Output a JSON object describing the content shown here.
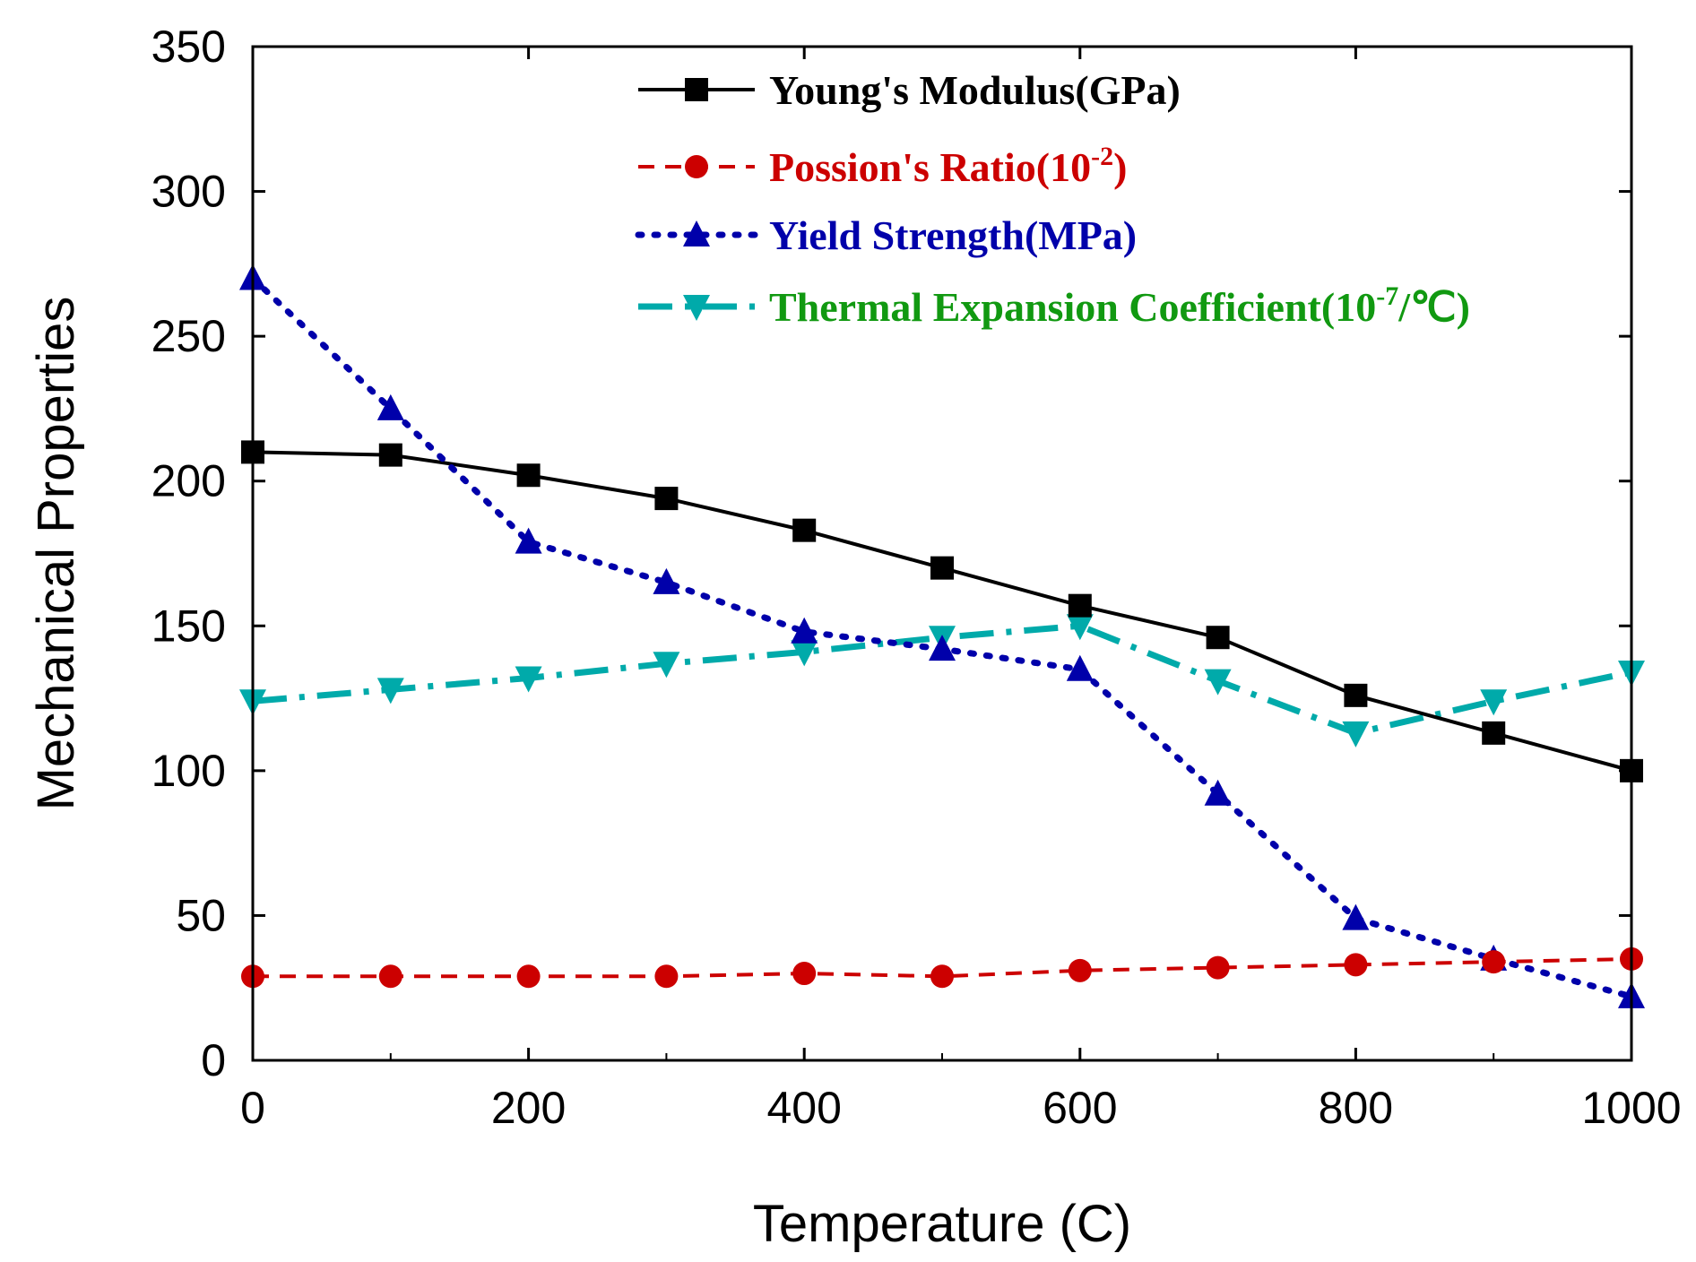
{
  "chart_data": {
    "type": "line",
    "xlabel": "Temperature (C)",
    "ylabel": "Mechanical  Properties",
    "xlim": [
      0,
      1000
    ],
    "ylim": [
      0,
      350
    ],
    "xticks": [
      0,
      200,
      400,
      600,
      800,
      1000
    ],
    "yticks": [
      0,
      50,
      100,
      150,
      200,
      250,
      300,
      350
    ],
    "x": [
      0,
      100,
      200,
      300,
      400,
      500,
      600,
      700,
      800,
      900,
      1000
    ],
    "legend_position": "top-right",
    "series": [
      {
        "name": "Young's Modulus(GPa)",
        "label_main": "Young's Modulus(GPa)",
        "color": "#000000",
        "marker": "square",
        "line": "solid",
        "values": [
          210,
          209,
          202,
          194,
          183,
          170,
          157,
          146,
          126,
          113,
          100
        ]
      },
      {
        "name": "Possion's Ratio(10-2)",
        "label_main": "Possion's Ratio(10",
        "label_sup": "-2",
        "label_tail": ")",
        "color": "#cc0000",
        "marker": "circle",
        "line": "dash",
        "values": [
          29,
          29,
          29,
          29,
          30,
          29,
          31,
          32,
          33,
          34,
          35
        ]
      },
      {
        "name": "Yield Strength(MPa)",
        "label_main": "Yield Strength(MPa)",
        "color": "#0000aa",
        "marker": "triangle-up",
        "line": "dot",
        "values": [
          270,
          225,
          179,
          165,
          148,
          142,
          135,
          92,
          49,
          35,
          22
        ]
      },
      {
        "name": "Thermal Expansion Coefficient(10-7/℃)",
        "label_main": "Thermal Expansion Coefficient(10",
        "label_sup": "-7",
        "label_tail": "/℃)",
        "color": "#00aaaa",
        "text_color": "#119911",
        "marker": "triangle-down",
        "line": "dashdot",
        "values": [
          124,
          128,
          132,
          137,
          141,
          146,
          150,
          131,
          113,
          124,
          134
        ]
      }
    ]
  }
}
